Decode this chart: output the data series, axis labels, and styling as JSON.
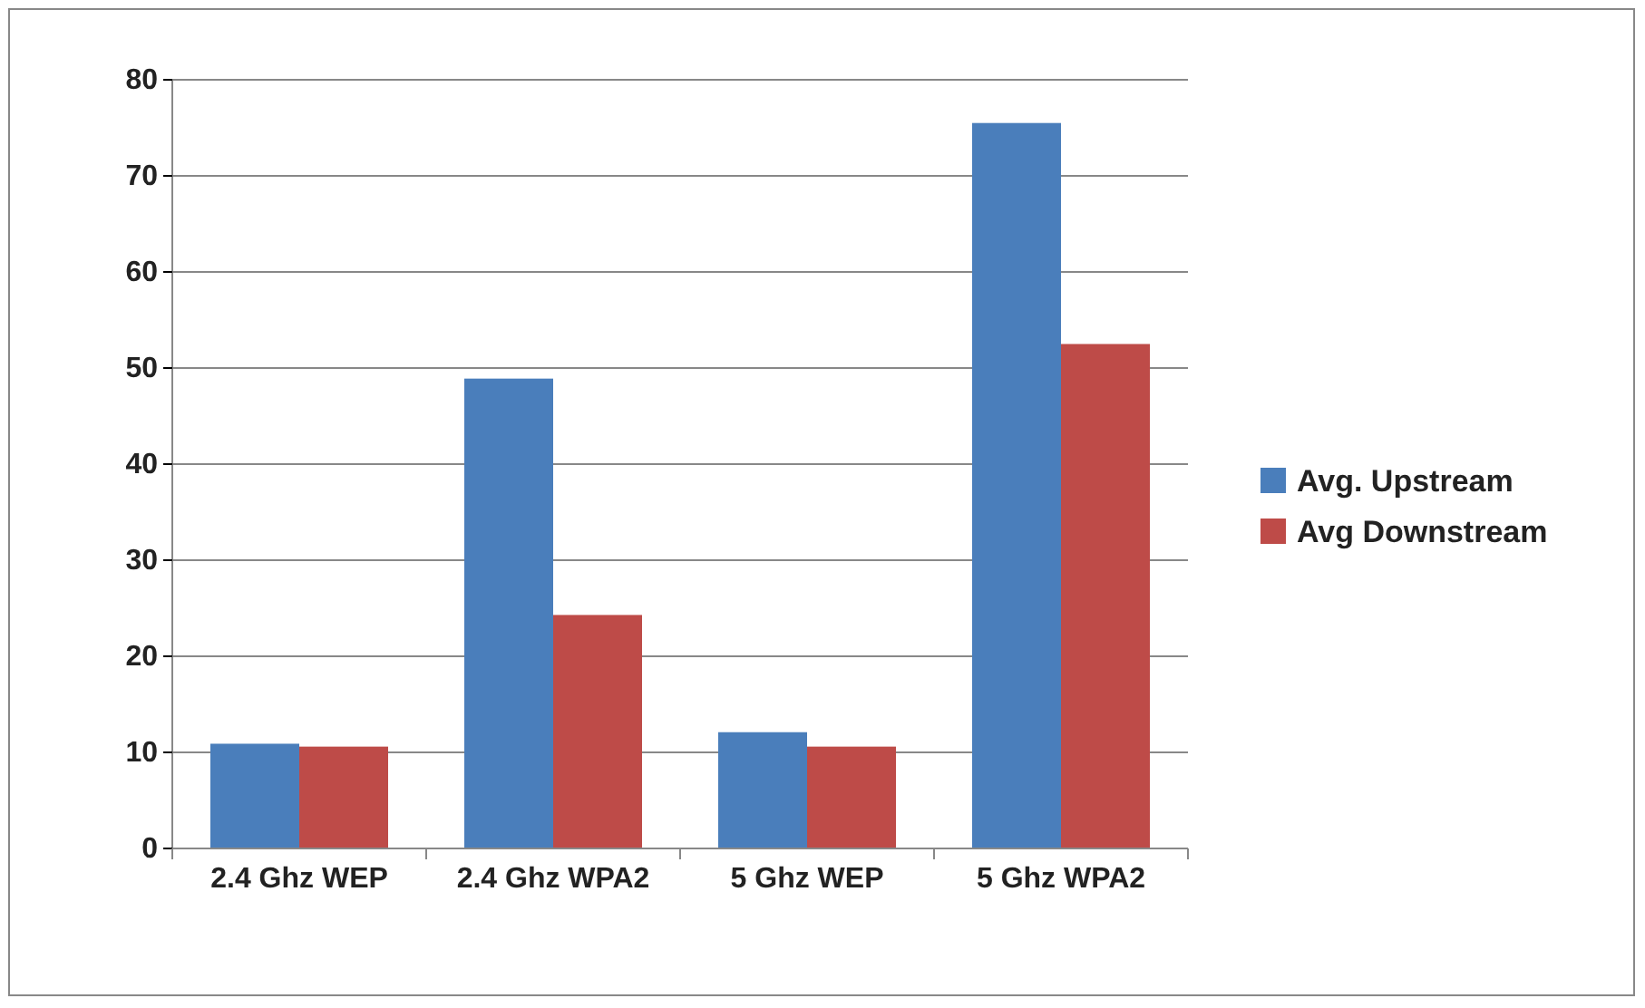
{
  "chart_data": {
    "type": "bar",
    "categories": [
      "2.4 Ghz WEP",
      "2.4 Ghz WPA2",
      "5 Ghz WEP",
      "5 Ghz WPA2"
    ],
    "series": [
      {
        "name": "Avg. Upstream",
        "color": "#4a7ebb",
        "values": [
          10.9,
          48.9,
          12.1,
          75.5
        ]
      },
      {
        "name": "Avg Downstream",
        "color": "#be4b48",
        "values": [
          10.6,
          24.3,
          10.6,
          52.5
        ]
      }
    ],
    "ylim": [
      0,
      80
    ],
    "yticks": [
      0,
      10,
      20,
      30,
      40,
      50,
      60,
      70,
      80
    ],
    "grid": "y",
    "legend": "right"
  }
}
